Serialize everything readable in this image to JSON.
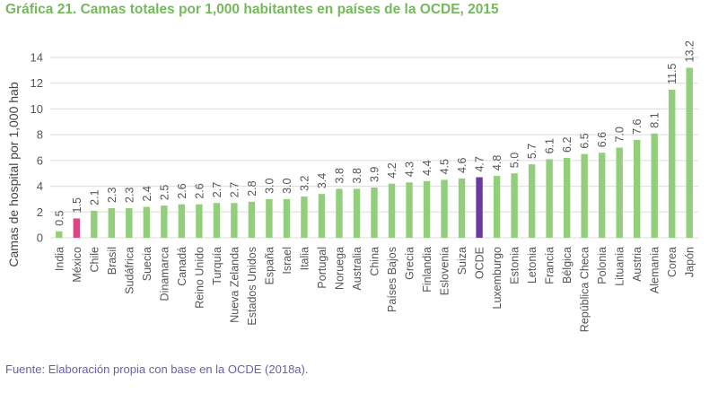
{
  "header": {
    "title": "Gráfica 21. Camas totales por 1,000 habitantes en países de la OCDE, 2015"
  },
  "footer": {
    "source": "Fuente: Elaboración propia con base en la OCDE (2018a)."
  },
  "colors": {
    "default": "#93cf7b",
    "highlight_mexico": "#d94683",
    "highlight_ocde": "#6a3aa0",
    "grid": "#dcdcdc",
    "title": "#74b95c"
  },
  "chart_data": {
    "type": "bar",
    "title": "Gráfica 21. Camas totales por 1,000 habitantes en países de la OCDE, 2015",
    "xlabel": "",
    "ylabel": "Camas de hospital por 1,000 hab",
    "ylim": [
      0,
      14
    ],
    "yticks": [
      0,
      2,
      4,
      6,
      8,
      10,
      12,
      14
    ],
    "grid": true,
    "categories": [
      "India",
      "México",
      "Chile",
      "Brasil",
      "Sudáfrica",
      "Suecia",
      "Dinamarca",
      "Canadá",
      "Reino Unido",
      "Turquía",
      "Nueva Zelanda",
      "Estados Unidos",
      "España",
      "Israel",
      "Italia",
      "Portugal",
      "Noruega",
      "Australia",
      "China",
      "Países Bajos",
      "Grecia",
      "Finlandia",
      "Eslovenia",
      "Suiza",
      "OCDE",
      "Luxemburgo",
      "Estonia",
      "Letonia",
      "Francia",
      "Bélgica",
      "República Checa",
      "Polonia",
      "Lituania",
      "Austria",
      "Alemania",
      "Corea",
      "Japón"
    ],
    "values": [
      0.5,
      1.5,
      2.1,
      2.3,
      2.3,
      2.4,
      2.5,
      2.6,
      2.6,
      2.7,
      2.7,
      2.8,
      3.0,
      3.0,
      3.2,
      3.4,
      3.8,
      3.8,
      3.9,
      4.2,
      4.3,
      4.4,
      4.5,
      4.6,
      4.7,
      4.8,
      5.0,
      5.7,
      6.1,
      6.2,
      6.5,
      6.6,
      7.0,
      7.6,
      8.1,
      11.5,
      13.2
    ],
    "data_labels": [
      "0.5",
      "1.5",
      "2.1",
      "2.3",
      "2.3",
      "2.4",
      "2.5",
      "2.6",
      "2.6",
      "2.7",
      "2.7",
      "2.8",
      "3.0",
      "3.0",
      "3.2",
      "3.4",
      "3.8",
      "3.8",
      "3.9",
      "4.2",
      "4.3",
      "4.4",
      "4.5",
      "4.6",
      "4.7",
      "4.8",
      "5.0",
      "5.7",
      "6.1",
      "6.2",
      "6.5",
      "6.6",
      "7.0",
      "7.6",
      "8.1",
      "11.5",
      "13.2"
    ],
    "highlight": {
      "México": "#d94683",
      "OCDE": "#6a3aa0"
    }
  }
}
